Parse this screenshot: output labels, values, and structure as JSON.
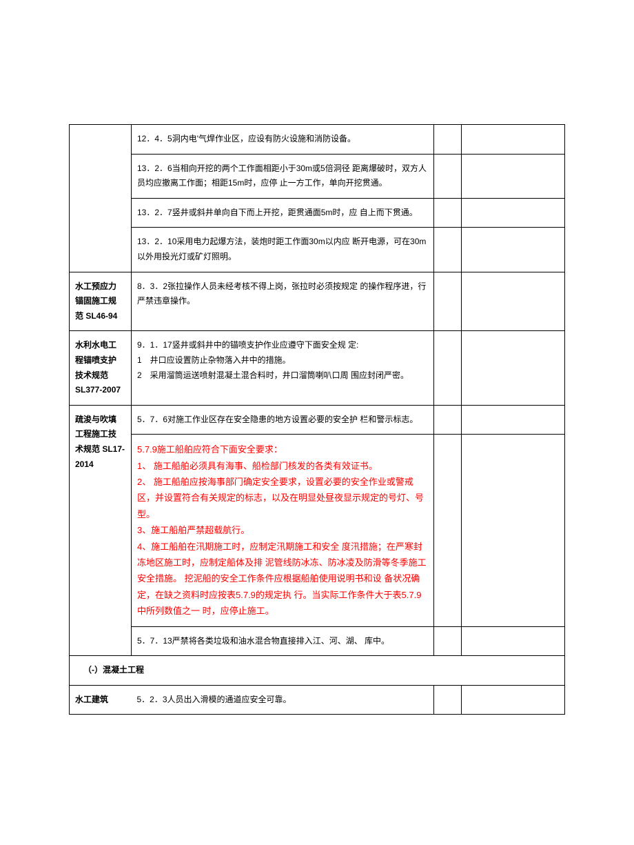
{
  "rows": [
    {
      "col1": "",
      "col2": "12．4．5洞内电'气焊作业区，应设有防火设施和消防设备。",
      "col3": "",
      "col4": "",
      "red": false
    },
    {
      "col1": "",
      "col2": "13．2．6当相向开挖的两个工作面相距小于30m或5倍洞径 距离爆破时，双方人员均应撤离工作面；相距15m时，应停 止一方工作，单向开挖贯通。",
      "col3": "",
      "col4": "",
      "red": false
    },
    {
      "col1": "",
      "col2": "13．2．7竖井或斜井单向自下而上开挖，距贯通面5m时，应 自上而下贯通。",
      "col3": "",
      "col4": "",
      "red": false
    },
    {
      "col1": "",
      "col2": "13．2．10采用电力起爆方法，装炮时距工作面30m以内应 断开电源，可在30m以外用投光灯或矿灯照明。",
      "col3": "",
      "col4": "",
      "red": false
    },
    {
      "col1": "水工预应力 锚固施工规 范 SL46-94",
      "col2": "8．3．2张拉操作人员未经考核不得上岗，张拉时必须按规定 的操作程序进，行严禁违章操作。",
      "col3": "",
      "col4": "",
      "red": false
    },
    {
      "col1": "水利水电工 程锚喷支护 技术规范 SL377-2007",
      "col2": "9．1．17竖井或斜井中的锚喷支护作业应遵守下面安全规 定:\n1　井口应设置防止杂物落入井中的措施。\n2　采用溜筒运送喷射混凝土混合料时，井口溜筒喇叭口周 围应封闭严密。",
      "col3": "",
      "col4": "",
      "red": false
    },
    {
      "col1": "",
      "col2": "5．7．6对施工作业区存在安全隐患的地方设置必要的安全护 栏和警示标志。",
      "col3": "",
      "col4": "",
      "red": false,
      "group": "dredge"
    },
    {
      "col1": "疏浚与吹填 工程施工技 术规范 SL17-2014",
      "col2": "5.7.9施工船舶应符合下面安全要求：\n1、 施工船舶必须具有海事、船检部门核发的各类有效证书。\n2、 施工船舶应按海事部门确定安全要求，设置必要的安全作业或警戒区，并设置符合有关规定的标志，以及在明显处昼夜显示规定的号灯、号型。\n3、施工船舶严禁超载航行。\n4、施工船舶在汛期施工时，应制定汛期施工和安全 度汛措施；在严寒封冻地区施工时，应制定船体及排 泥管线防冰冻、防冰凌及防滑等冬季施工安全措施。 挖泥船的安全工作条件应根据船舶使用说明书和设 备状况确定，在缺之资料时应按表5.7.9的规定执 行。当实际工作条件大于表5.7.9中所列数值之一 时，应停止施工。",
      "col3": "",
      "col4": "",
      "red": true,
      "group": "dredge"
    },
    {
      "col1": "",
      "col2": "5．7．13严禁将各类垃圾和油水混合物直接排入江、河、湖、 库中。",
      "col3": "",
      "col4": "",
      "red": false,
      "group": "dredge"
    }
  ],
  "section_header": "（-）混凝土工程",
  "last_row": {
    "col1": "水工建筑",
    "col2": "5．2．3人员出入滑模的通道应安全可靠。",
    "col3": "",
    "col4": ""
  }
}
